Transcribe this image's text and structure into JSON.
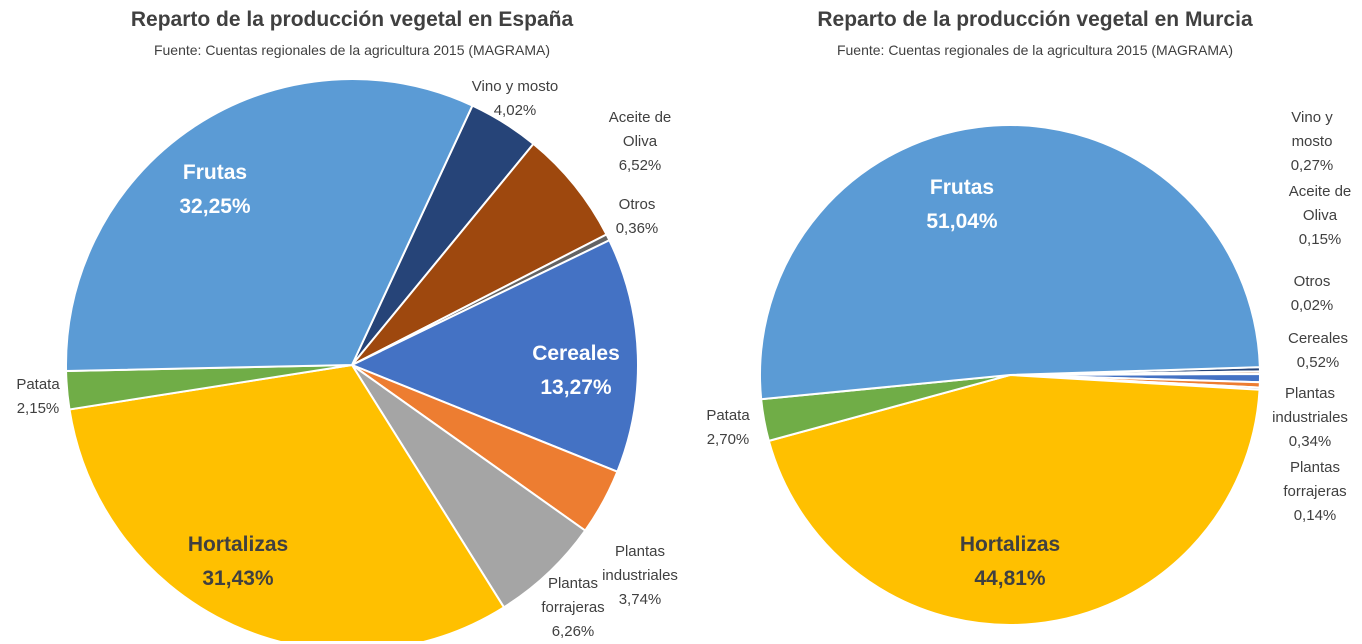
{
  "chart_data": [
    {
      "type": "pie",
      "title": "Reparto de la producción vegetal en España",
      "subtitle": "Fuente: Cuentas regionales de la agricultura 2015 (MAGRAMA)",
      "categories": [
        "Vino y mosto",
        "Aceite de Oliva",
        "Otros",
        "Cereales",
        "Plantas industriales",
        "Plantas forrajeras",
        "Hortalizas",
        "Patata",
        "Frutas"
      ],
      "values": [
        4.02,
        6.52,
        0.36,
        13.27,
        3.74,
        6.26,
        31.43,
        2.15,
        32.25
      ],
      "value_labels": [
        "4,02%",
        "6,52%",
        "0,36%",
        "13,27%",
        "3,74%",
        "6,26%",
        "31,43%",
        "2,15%",
        "32,25%"
      ],
      "colors": [
        "#264478",
        "#9e480e",
        "#636363",
        "#4472c4",
        "#ed7d31",
        "#a5a5a5",
        "#ffc000",
        "#70ad47",
        "#5b9bd5"
      ]
    },
    {
      "type": "pie",
      "title": "Reparto de la producción vegetal en Murcia",
      "subtitle": "Fuente: Cuentas regionales de la agricultura 2015 (MAGRAMA)",
      "categories": [
        "Vino y mosto",
        "Aceite de Oliva",
        "Otros",
        "Cereales",
        "Plantas industriales",
        "Plantas forrajeras",
        "Hortalizas",
        "Patata",
        "Frutas"
      ],
      "values": [
        0.27,
        0.15,
        0.02,
        0.52,
        0.34,
        0.14,
        44.81,
        2.7,
        51.04
      ],
      "value_labels": [
        "0,27%",
        "0,15%",
        "0,02%",
        "0,52%",
        "0,34%",
        "0,14%",
        "44,81%",
        "2,70%",
        "51,04%"
      ],
      "colors": [
        "#264478",
        "#9e480e",
        "#636363",
        "#4472c4",
        "#ed7d31",
        "#a5a5a5",
        "#ffc000",
        "#70ad47",
        "#5b9bd5"
      ]
    }
  ]
}
